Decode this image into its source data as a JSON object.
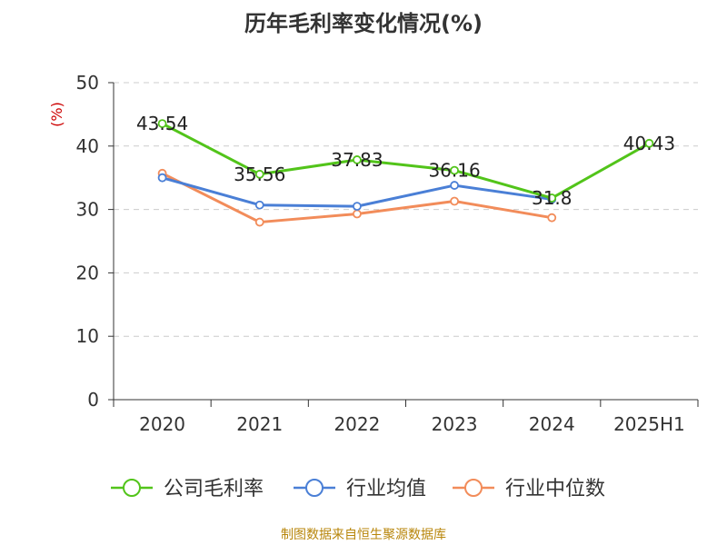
{
  "chart_data": {
    "type": "line",
    "title": "历年毛利率变化情况(%)",
    "ylabel": "(%)",
    "xlabel": "",
    "categories": [
      "2020",
      "2021",
      "2022",
      "2023",
      "2024",
      "2025H1"
    ],
    "ylim": [
      0,
      50
    ],
    "yticks": [
      0,
      10,
      20,
      30,
      40,
      50
    ],
    "grid": true,
    "legend_position": "bottom",
    "series": [
      {
        "name": "公司毛利率",
        "color": "#52c41a",
        "values": [
          43.54,
          35.56,
          37.83,
          36.16,
          31.8,
          40.43
        ],
        "labels": [
          "43.54",
          "35.56",
          "37.83",
          "36.16",
          "31.8",
          "40.43"
        ]
      },
      {
        "name": "行业均值",
        "color": "#4a7fd6",
        "values": [
          35.0,
          30.7,
          30.5,
          33.8,
          31.6,
          null
        ],
        "labels": []
      },
      {
        "name": "行业中位数",
        "color": "#f28c5a",
        "values": [
          35.7,
          28.0,
          29.3,
          31.3,
          28.7,
          null
        ],
        "labels": []
      }
    ]
  },
  "source": "制图数据来自恒生聚源数据库"
}
